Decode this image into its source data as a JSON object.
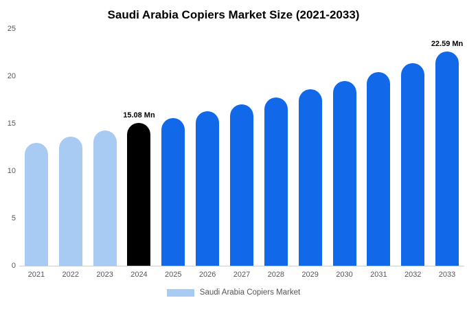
{
  "chart_data": {
    "type": "bar",
    "title": "Saudi Arabia Copiers Market Size (2021-2033)",
    "categories": [
      "2021",
      "2022",
      "2023",
      "2024",
      "2025",
      "2026",
      "2027",
      "2028",
      "2029",
      "2030",
      "2031",
      "2032",
      "2033"
    ],
    "values": [
      12.95,
      13.65,
      14.25,
      15.08,
      15.6,
      16.3,
      17.0,
      17.75,
      18.6,
      19.5,
      20.45,
      21.35,
      22.59
    ],
    "bar_colors": [
      "#a7cbf3",
      "#a7cbf3",
      "#a7cbf3",
      "#000000",
      "#1168e8",
      "#1168e8",
      "#1168e8",
      "#1168e8",
      "#1168e8",
      "#1168e8",
      "#1168e8",
      "#1168e8",
      "#1168e8"
    ],
    "data_labels": [
      "",
      "",
      "",
      "15.08 Mn",
      "",
      "",
      "",
      "",
      "",
      "",
      "",
      "",
      "22.59 Mn"
    ],
    "xlabel": "",
    "ylabel": "",
    "ylim": [
      0,
      25
    ],
    "yticks": [
      0,
      5,
      10,
      15,
      20,
      25
    ],
    "grid": false,
    "legend": {
      "position": "bottom",
      "label": "Saudi Arabia Copiers Market",
      "swatch_color": "#a7cbf3"
    },
    "colors": {
      "light_blue": "#a7cbf3",
      "blue": "#1168e8",
      "black": "#000000"
    }
  }
}
